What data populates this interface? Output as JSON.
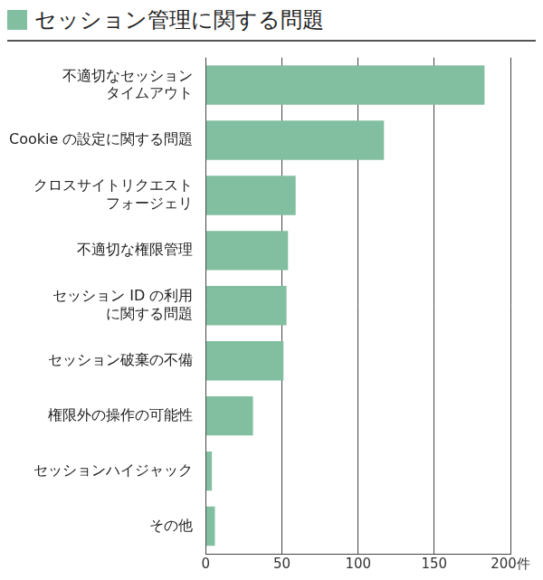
{
  "chart_data": {
    "type": "bar",
    "orientation": "horizontal",
    "title": "セッション管理に関する問題",
    "categories": [
      [
        "不適切なセッション",
        "タイムアウト"
      ],
      "Cookie の設定に関する問題",
      [
        "クロスサイトリクエスト",
        "フォージェリ"
      ],
      "不適切な権限管理",
      [
        "セッション ID の利用",
        "に関する問題"
      ],
      "セッション破棄の不備",
      "権限外の操作の可能性",
      "セッションハイジャック",
      "その他"
    ],
    "values": [
      183,
      117,
      59,
      54,
      53,
      51,
      31,
      4,
      6
    ],
    "color": "#82bfa0",
    "xlim": [
      0,
      200
    ],
    "xticks": [
      0,
      50,
      100,
      150,
      {
        "value": 200,
        "label": "200件"
      }
    ],
    "grid": true
  }
}
